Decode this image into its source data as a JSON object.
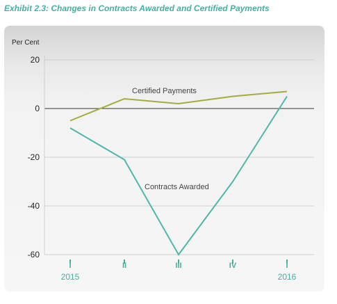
{
  "exhibit_title": "Exhibit 2.3: Changes in Contracts Awarded and Certified Payments",
  "chart_data": {
    "type": "line",
    "ylabel": "Per Cent",
    "ylim": [
      -60,
      20
    ],
    "yticks": [
      20,
      0,
      -20,
      -40,
      -60
    ],
    "categories": [
      "I",
      "II",
      "III",
      "IV",
      "I"
    ],
    "year_labels": [
      "2015",
      "",
      "",
      "",
      "2016"
    ],
    "grid": true,
    "colors": {
      "certified": "#a3ac3c",
      "contracts": "#4fb7a8",
      "tick_text": "#45b0a0"
    },
    "series": [
      {
        "key": "certified",
        "name": "Certified Payments",
        "values": [
          -5,
          4,
          2,
          5,
          7
        ]
      },
      {
        "key": "contracts",
        "name": "Contracts Awarded",
        "values": [
          -8,
          -21,
          -60,
          -30,
          5
        ]
      }
    ]
  }
}
